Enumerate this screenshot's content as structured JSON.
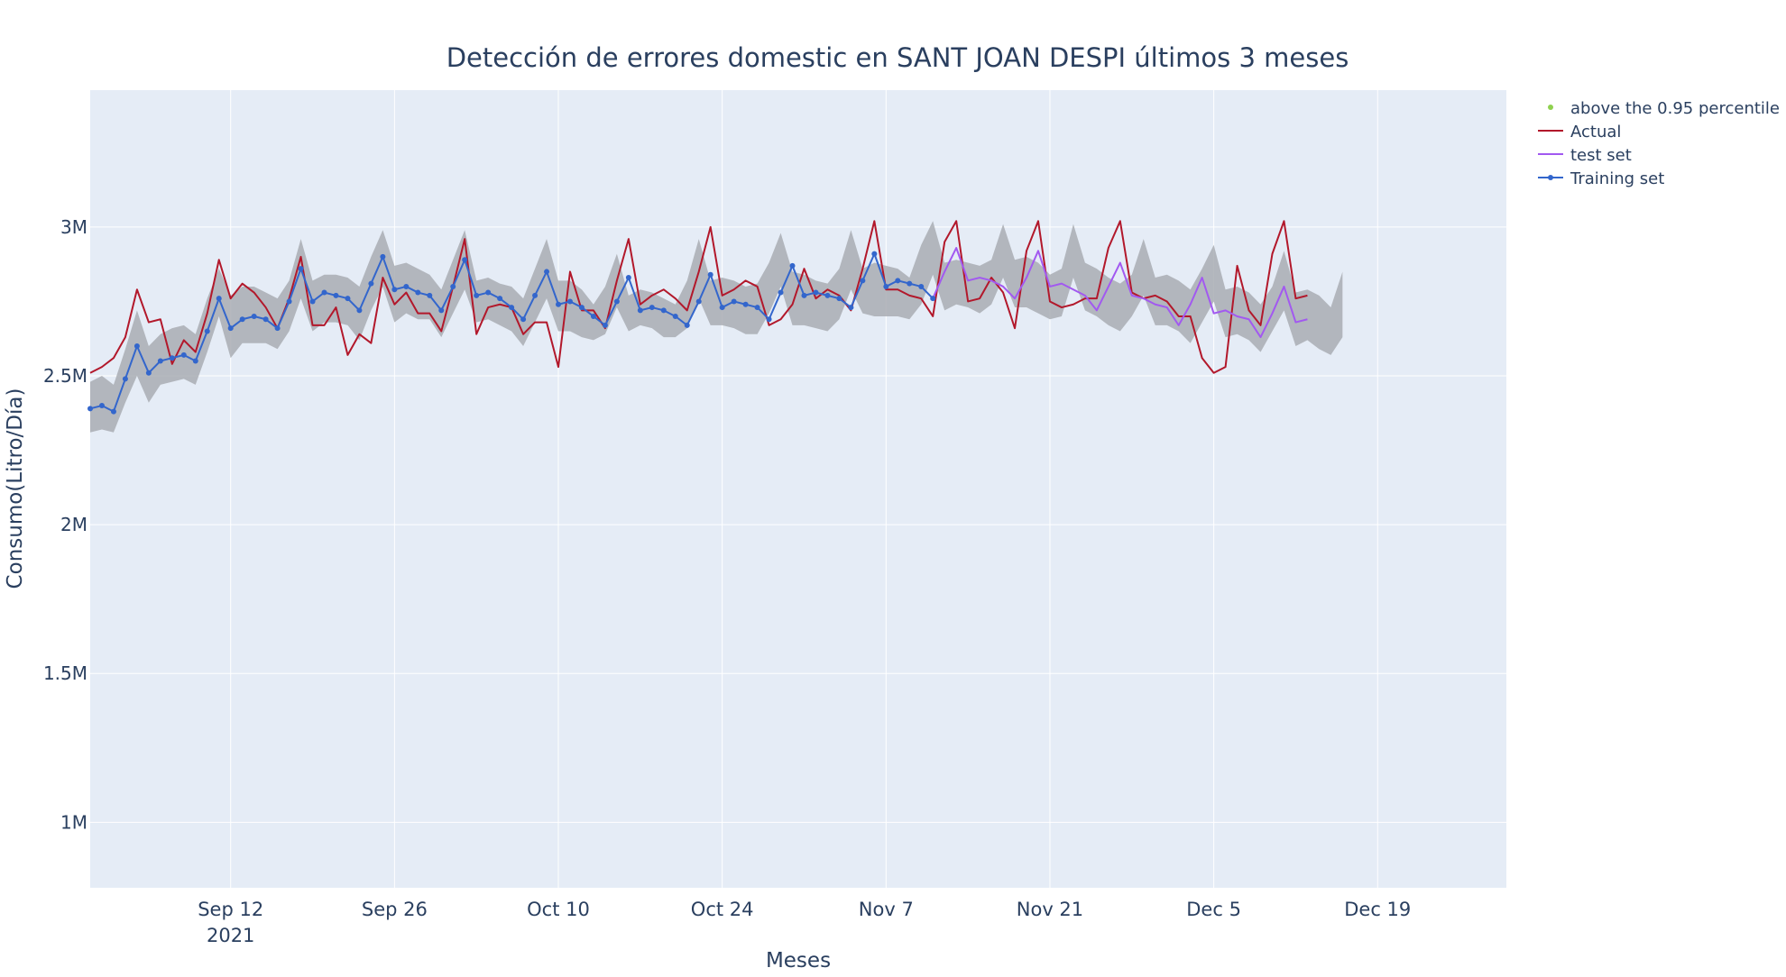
{
  "chart_data": {
    "type": "line",
    "title": "Detección de errores domestic en SANT JOAN DESPI últimos 3 meses",
    "xlabel": "Meses",
    "ylabel": "Consumo(Litro/Día)",
    "xlim": [
      "2021-08-31",
      "2021-12-30"
    ],
    "ylim": [
      780000,
      3460000
    ],
    "x_ticks": [
      {
        "date": "2021-09-12",
        "label": "Sep 12",
        "sublabel": "2021"
      },
      {
        "date": "2021-09-26",
        "label": "Sep 26"
      },
      {
        "date": "2021-10-10",
        "label": "Oct 10"
      },
      {
        "date": "2021-10-24",
        "label": "Oct 24"
      },
      {
        "date": "2021-11-07",
        "label": "Nov 7"
      },
      {
        "date": "2021-11-21",
        "label": "Nov 21"
      },
      {
        "date": "2021-12-05",
        "label": "Dec 5"
      },
      {
        "date": "2021-12-19",
        "label": "Dec 19"
      }
    ],
    "y_ticks": [
      {
        "value": 1000000,
        "label": "1M"
      },
      {
        "value": 1500000,
        "label": "1.5M"
      },
      {
        "value": 2000000,
        "label": "2M"
      },
      {
        "value": 2500000,
        "label": "2.5M"
      },
      {
        "value": 3000000,
        "label": "3M"
      }
    ],
    "grid": true,
    "legend_position": "top-right",
    "colors": {
      "plot_bg": "#e5ecf6",
      "grid": "#ffffff",
      "band": "#a9adb3",
      "actual": "#b2182b",
      "test": "#a259f0",
      "training": "#3366cc",
      "anomaly": "#8fd14f",
      "text": "#2a3f5f"
    },
    "start_date": "2021-08-31",
    "legend": [
      {
        "key": "anomaly",
        "label": "above the 0.95 percentile"
      },
      {
        "key": "actual",
        "label": "Actual"
      },
      {
        "key": "test",
        "label": "test set"
      },
      {
        "key": "training",
        "label": "Training set"
      }
    ],
    "band_start_day": 0,
    "band_upper": [
      2480000,
      2500000,
      2470000,
      2590000,
      2720000,
      2600000,
      2640000,
      2660000,
      2670000,
      2640000,
      2760000,
      2860000,
      2770000,
      2800000,
      2800000,
      2780000,
      2760000,
      2820000,
      2960000,
      2820000,
      2840000,
      2840000,
      2830000,
      2800000,
      2900000,
      2990000,
      2870000,
      2880000,
      2860000,
      2840000,
      2790000,
      2890000,
      2990000,
      2820000,
      2830000,
      2810000,
      2800000,
      2760000,
      2860000,
      2960000,
      2820000,
      2820000,
      2790000,
      2740000,
      2800000,
      2910000,
      2770000,
      2790000,
      2780000,
      2760000,
      2740000,
      2820000,
      2960000,
      2820000,
      2830000,
      2820000,
      2800000,
      2810000,
      2880000,
      2980000,
      2850000,
      2840000,
      2820000,
      2810000,
      2860000,
      2990000,
      2860000,
      2880000,
      2870000,
      2860000,
      2830000,
      2940000,
      3020000,
      2880000,
      2890000,
      2880000,
      2870000,
      2890000,
      3010000,
      2890000,
      2900000,
      2880000,
      2840000,
      2860000,
      3010000,
      2880000,
      2860000,
      2830000,
      2810000,
      2840000,
      2960000,
      2830000,
      2840000,
      2820000,
      2790000,
      2860000,
      2940000,
      2790000,
      2800000,
      2780000,
      2740000,
      2800000,
      2920000,
      2780000,
      2790000,
      2770000,
      2730000,
      2850000
    ],
    "band_lower": [
      2310000,
      2320000,
      2310000,
      2410000,
      2500000,
      2410000,
      2470000,
      2480000,
      2490000,
      2470000,
      2580000,
      2700000,
      2560000,
      2610000,
      2610000,
      2610000,
      2590000,
      2650000,
      2760000,
      2650000,
      2680000,
      2680000,
      2670000,
      2620000,
      2720000,
      2800000,
      2680000,
      2710000,
      2690000,
      2690000,
      2630000,
      2710000,
      2790000,
      2680000,
      2690000,
      2670000,
      2650000,
      2600000,
      2680000,
      2760000,
      2650000,
      2650000,
      2630000,
      2620000,
      2640000,
      2730000,
      2650000,
      2670000,
      2660000,
      2630000,
      2630000,
      2660000,
      2760000,
      2670000,
      2670000,
      2660000,
      2640000,
      2640000,
      2710000,
      2800000,
      2670000,
      2670000,
      2660000,
      2650000,
      2690000,
      2790000,
      2710000,
      2700000,
      2700000,
      2700000,
      2690000,
      2740000,
      2840000,
      2720000,
      2740000,
      2730000,
      2710000,
      2740000,
      2830000,
      2730000,
      2730000,
      2710000,
      2690000,
      2700000,
      2830000,
      2720000,
      2700000,
      2670000,
      2650000,
      2700000,
      2770000,
      2670000,
      2670000,
      2650000,
      2610000,
      2680000,
      2750000,
      2630000,
      2640000,
      2620000,
      2580000,
      2650000,
      2720000,
      2600000,
      2620000,
      2590000,
      2570000,
      2630000
    ],
    "training_start_day": 0,
    "training_values": [
      2390000,
      2400000,
      2380000,
      2490000,
      2600000,
      2510000,
      2550000,
      2560000,
      2570000,
      2550000,
      2650000,
      2760000,
      2660000,
      2690000,
      2700000,
      2690000,
      2660000,
      2750000,
      2860000,
      2750000,
      2780000,
      2770000,
      2760000,
      2720000,
      2810000,
      2900000,
      2790000,
      2800000,
      2780000,
      2770000,
      2720000,
      2800000,
      2890000,
      2770000,
      2780000,
      2760000,
      2730000,
      2690000,
      2770000,
      2850000,
      2740000,
      2750000,
      2730000,
      2700000,
      2670000,
      2750000,
      2830000,
      2720000,
      2730000,
      2720000,
      2700000,
      2670000,
      2750000,
      2840000,
      2730000,
      2750000,
      2740000,
      2730000,
      2690000,
      2780000,
      2870000,
      2770000,
      2780000,
      2770000,
      2760000,
      2730000,
      2820000,
      2910000,
      2800000,
      2820000,
      2810000,
      2800000,
      2760000
    ],
    "test_start_day": 72,
    "test_values": [
      2760000,
      2850000,
      2930000,
      2820000,
      2830000,
      2820000,
      2800000,
      2760000,
      2830000,
      2920000,
      2800000,
      2810000,
      2790000,
      2770000,
      2720000,
      2800000,
      2880000,
      2770000,
      2760000,
      2740000,
      2730000,
      2670000,
      2740000,
      2830000,
      2710000,
      2720000,
      2700000,
      2690000,
      2630000,
      2710000,
      2800000,
      2680000,
      2690000
    ],
    "actual_start_day": 0,
    "actual_values": [
      2510000,
      2530000,
      2560000,
      2630000,
      2790000,
      2680000,
      2690000,
      2540000,
      2620000,
      2580000,
      2710000,
      2890000,
      2760000,
      2810000,
      2780000,
      2730000,
      2660000,
      2760000,
      2900000,
      2670000,
      2670000,
      2730000,
      2570000,
      2640000,
      2610000,
      2830000,
      2740000,
      2780000,
      2710000,
      2710000,
      2650000,
      2800000,
      2960000,
      2640000,
      2730000,
      2740000,
      2730000,
      2640000,
      2680000,
      2680000,
      2530000,
      2850000,
      2720000,
      2720000,
      2660000,
      2820000,
      2960000,
      2740000,
      2770000,
      2790000,
      2760000,
      2720000,
      2850000,
      3000000,
      2770000,
      2790000,
      2820000,
      2800000,
      2670000,
      2690000,
      2740000,
      2860000,
      2760000,
      2790000,
      2770000,
      2720000,
      2860000,
      3020000,
      2790000,
      2790000,
      2770000,
      2760000,
      2700000,
      2950000,
      3020000,
      2750000,
      2760000,
      2830000,
      2780000,
      2660000,
      2920000,
      3020000,
      2750000,
      2730000,
      2740000,
      2760000,
      2760000,
      2930000,
      3020000,
      2780000,
      2760000,
      2770000,
      2750000,
      2700000,
      2700000,
      2560000,
      2510000,
      2530000,
      2870000,
      2720000,
      2670000,
      2910000,
      3020000,
      2760000,
      2770000
    ]
  }
}
